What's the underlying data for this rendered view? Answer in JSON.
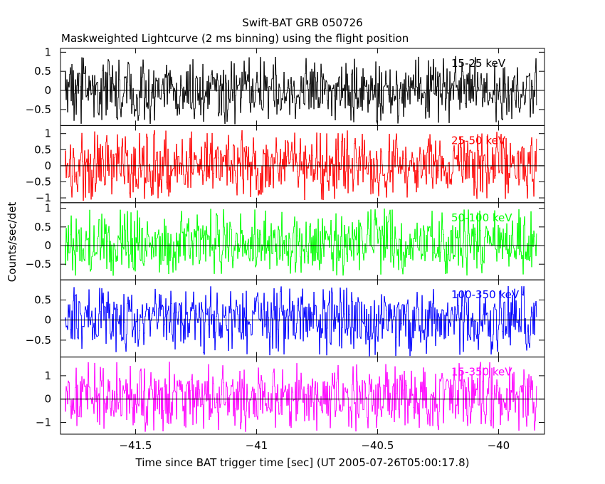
{
  "chart_data": {
    "type": "line",
    "title": "Swift-BAT GRB 050726",
    "subtitle": "Maskweighted Lightcurve (2 ms binning) using the flight position",
    "xlabel": "Time since BAT trigger time [sec] (UT 2005-07-26T05:00:17.8)",
    "ylabel": "Counts/sec/det",
    "xlim": [
      -41.81,
      -39.81
    ],
    "xticks": [
      -41.5,
      -41,
      -40.5,
      -40
    ],
    "xtick_labels": [
      "−41.5",
      "−41",
      "−40.5",
      "−40"
    ],
    "data_xrange": [
      -41.79,
      -39.84
    ],
    "bin_width_sec": 0.002,
    "panels": [
      {
        "name": "15-25 keV",
        "color": "#000000",
        "ylim": [
          -0.92,
          1.1
        ],
        "yticks": [
          -0.5,
          0,
          0.5,
          1
        ],
        "ytick_labels": [
          "−0.5",
          "0",
          "0.5",
          "1"
        ],
        "amplitude": [
          -0.88,
          0.9
        ]
      },
      {
        "name": "25-50 keV",
        "color": "#ff0000",
        "ylim": [
          -1.15,
          1.25
        ],
        "yticks": [
          -1,
          -0.5,
          0,
          0.5,
          1
        ],
        "ytick_labels": [
          "−1",
          "−0.5",
          "0",
          "0.5",
          "1"
        ],
        "amplitude": [
          -1.1,
          1.1
        ]
      },
      {
        "name": "50-100 keV",
        "color": "#00ff00",
        "ylim": [
          -0.92,
          1.15
        ],
        "yticks": [
          -0.5,
          0,
          0.5,
          1
        ],
        "ytick_labels": [
          "−0.5",
          "0",
          "0.5",
          "1"
        ],
        "amplitude": [
          -0.8,
          1.0
        ]
      },
      {
        "name": "100-350 keV",
        "color": "#0000ff",
        "ylim": [
          -0.92,
          1.0
        ],
        "yticks": [
          -0.5,
          0,
          0.5
        ],
        "ytick_labels": [
          "−0.5",
          "0",
          "0.5"
        ],
        "amplitude": [
          -0.9,
          0.85
        ]
      },
      {
        "name": "15-350 keV",
        "color": "#ff00ff",
        "ylim": [
          -1.5,
          1.8
        ],
        "yticks": [
          -1,
          0,
          1
        ],
        "ytick_labels": [
          "−1",
          "0",
          "1"
        ],
        "amplitude": [
          -1.4,
          1.6
        ]
      }
    ],
    "zero_line": true,
    "grid": false,
    "legend": "none"
  }
}
